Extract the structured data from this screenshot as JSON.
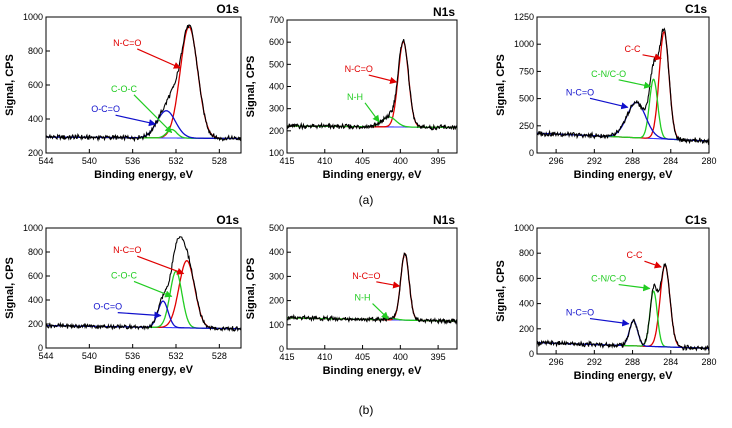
{
  "figure": {
    "caption_a": "(a)",
    "caption_b": "(b)"
  },
  "colors": {
    "experimental": "#000000",
    "background": "#3a3aff",
    "red": "#e00000",
    "green": "#22cc22",
    "blue": "#1010cc"
  },
  "chart_data": [
    {
      "id": "a-O1s",
      "type": "line",
      "title": "O1s",
      "xlabel": "Binding energy, eV",
      "ylabel": "Signal, CPS",
      "xlim": [
        544,
        526
      ],
      "ylim": [
        200,
        1000
      ],
      "xticks": [
        544,
        540,
        536,
        532,
        528
      ],
      "yticks": [
        200,
        400,
        600,
        800,
        1000
      ],
      "baseline": 285,
      "bg_slope": 0.5,
      "components": [
        {
          "name": "N-C=O",
          "color": "red",
          "center": 530.8,
          "fwhm": 1.9,
          "height": 655
        },
        {
          "name": "C-O-C",
          "color": "green",
          "center": 532.4,
          "fwhm": 1.1,
          "height": 50
        },
        {
          "name": "O-C=O",
          "color": "blue",
          "center": 532.9,
          "fwhm": 2.0,
          "height": 160
        }
      ],
      "annotations": [
        {
          "text": "N-C=O",
          "color": "red",
          "at": [
            536.5,
            830
          ],
          "arrow_to": [
            531.6,
            700
          ]
        },
        {
          "text": "C-O-C",
          "color": "green",
          "at": [
            536.8,
            560
          ],
          "arrow_to": [
            532.4,
            320
          ]
        },
        {
          "text": "O-C=O",
          "color": "blue",
          "at": [
            538.5,
            440
          ],
          "arrow_to": [
            533.9,
            370
          ]
        }
      ]
    },
    {
      "id": "a-N1s",
      "type": "line",
      "title": "N1s",
      "xlabel": "Binding energy, eV",
      "ylabel": "Signal, CPS",
      "xlim": [
        415,
        392.5
      ],
      "ylim": [
        100,
        700
      ],
      "xticks": [
        415,
        410,
        405,
        400,
        395
      ],
      "yticks": [
        100,
        200,
        300,
        400,
        500,
        600,
        700
      ],
      "baseline": 215,
      "bg_slope": 0.3,
      "components": [
        {
          "name": "N-C=O",
          "color": "red",
          "center": 399.6,
          "fwhm": 1.6,
          "height": 385
        },
        {
          "name": "N-H",
          "color": "green",
          "center": 401.5,
          "fwhm": 2.2,
          "height": 45
        }
      ],
      "annotations": [
        {
          "text": "N-C=O",
          "color": "red",
          "at": [
            405.5,
            465
          ],
          "arrow_to": [
            400.5,
            420
          ]
        },
        {
          "text": "N-H",
          "color": "green",
          "at": [
            406,
            340
          ],
          "arrow_to": [
            402.8,
            240
          ]
        }
      ]
    },
    {
      "id": "a-C1s",
      "type": "line",
      "title": "C1s",
      "xlabel": "Binding energy, eV",
      "ylabel": "Signal, CPS",
      "xlim": [
        298,
        280
      ],
      "ylim": [
        0,
        1250
      ],
      "xticks": [
        296,
        292,
        288,
        284,
        280
      ],
      "yticks": [
        0,
        250,
        500,
        750,
        1000,
        1250
      ],
      "baseline": 110,
      "bg_slope": 4,
      "components": [
        {
          "name": "C-C",
          "color": "red",
          "center": 284.7,
          "fwhm": 1.2,
          "height": 985
        },
        {
          "name": "C-N/C-O",
          "color": "green",
          "center": 285.8,
          "fwhm": 1.0,
          "height": 545
        },
        {
          "name": "N-C=O",
          "color": "blue",
          "center": 287.6,
          "fwhm": 2.3,
          "height": 325
        }
      ],
      "annotations": [
        {
          "text": "C-C",
          "color": "red",
          "at": [
            288,
            930
          ],
          "arrow_to": [
            285.0,
            870
          ]
        },
        {
          "text": "C-N/C-O",
          "color": "green",
          "at": [
            290.5,
            700
          ],
          "arrow_to": [
            286.1,
            610
          ]
        },
        {
          "text": "N-C=O",
          "color": "blue",
          "at": [
            293.5,
            530
          ],
          "arrow_to": [
            288.5,
            420
          ]
        }
      ]
    },
    {
      "id": "b-O1s",
      "type": "line",
      "title": "O1s",
      "xlabel": "Binding energy, eV",
      "ylabel": "Signal, CPS",
      "xlim": [
        544,
        526
      ],
      "ylim": [
        0,
        1000
      ],
      "xticks": [
        544,
        540,
        536,
        532,
        528
      ],
      "yticks": [
        0,
        200,
        400,
        600,
        800,
        1000
      ],
      "baseline": 160,
      "bg_slope": 1.5,
      "components": [
        {
          "name": "N-C=O",
          "color": "red",
          "center": 531.0,
          "fwhm": 1.7,
          "height": 560
        },
        {
          "name": "C-O-C",
          "color": "green",
          "center": 532.0,
          "fwhm": 1.3,
          "height": 470
        },
        {
          "name": "O-C=O",
          "color": "blue",
          "center": 533.2,
          "fwhm": 1.1,
          "height": 220
        }
      ],
      "annotations": [
        {
          "text": "N-C=O",
          "color": "red",
          "at": [
            536.5,
            790
          ],
          "arrow_to": [
            531.3,
            620
          ]
        },
        {
          "text": "C-O-C",
          "color": "green",
          "at": [
            536.8,
            580
          ],
          "arrow_to": [
            532.4,
            430
          ]
        },
        {
          "text": "O-C=O",
          "color": "blue",
          "at": [
            538.3,
            320
          ],
          "arrow_to": [
            533.4,
            270
          ]
        }
      ]
    },
    {
      "id": "b-N1s",
      "type": "line",
      "title": "N1s",
      "xlabel": "Binding energy, eV",
      "ylabel": "Signal, CPS",
      "xlim": [
        415,
        392.5
      ],
      "ylim": [
        0,
        500
      ],
      "xticks": [
        415,
        410,
        405,
        400,
        395
      ],
      "yticks": [
        0,
        100,
        200,
        300,
        400,
        500
      ],
      "baseline": 115,
      "bg_slope": 0.6,
      "components": [
        {
          "name": "N-C=O",
          "color": "red",
          "center": 399.4,
          "fwhm": 1.3,
          "height": 275
        },
        {
          "name": "N-H",
          "color": "green",
          "center": 401.2,
          "fwhm": 1.8,
          "height": 6
        }
      ],
      "annotations": [
        {
          "text": "N-C=O",
          "color": "red",
          "at": [
            404.5,
            290
          ],
          "arrow_to": [
            400.1,
            260
          ]
        },
        {
          "text": "N-H",
          "color": "green",
          "at": [
            405,
            200
          ],
          "arrow_to": [
            401.6,
            125
          ]
        }
      ]
    },
    {
      "id": "b-C1s",
      "type": "line",
      "title": "C1s",
      "xlabel": "Binding energy, eV",
      "ylabel": "Signal, CPS",
      "xlim": [
        298,
        280
      ],
      "ylim": [
        0,
        1000
      ],
      "xticks": [
        296,
        292,
        288,
        284,
        280
      ],
      "yticks": [
        0,
        200,
        400,
        600,
        800,
        1000
      ],
      "baseline": 45,
      "bg_slope": 2.5,
      "components": [
        {
          "name": "C-C",
          "color": "red",
          "center": 284.6,
          "fwhm": 1.2,
          "height": 650
        },
        {
          "name": "C-N/C-O",
          "color": "green",
          "center": 285.8,
          "fwhm": 0.9,
          "height": 440
        },
        {
          "name": "N-C=O",
          "color": "blue",
          "center": 287.9,
          "fwhm": 1.0,
          "height": 200
        }
      ],
      "annotations": [
        {
          "text": "C-C",
          "color": "red",
          "at": [
            287.8,
            760
          ],
          "arrow_to": [
            285.0,
            690
          ]
        },
        {
          "text": "C-N/C-O",
          "color": "green",
          "at": [
            290.5,
            575
          ],
          "arrow_to": [
            286.2,
            520
          ]
        },
        {
          "text": "N-C=O",
          "color": "blue",
          "at": [
            293.5,
            305
          ],
          "arrow_to": [
            288.4,
            240
          ]
        }
      ]
    }
  ]
}
